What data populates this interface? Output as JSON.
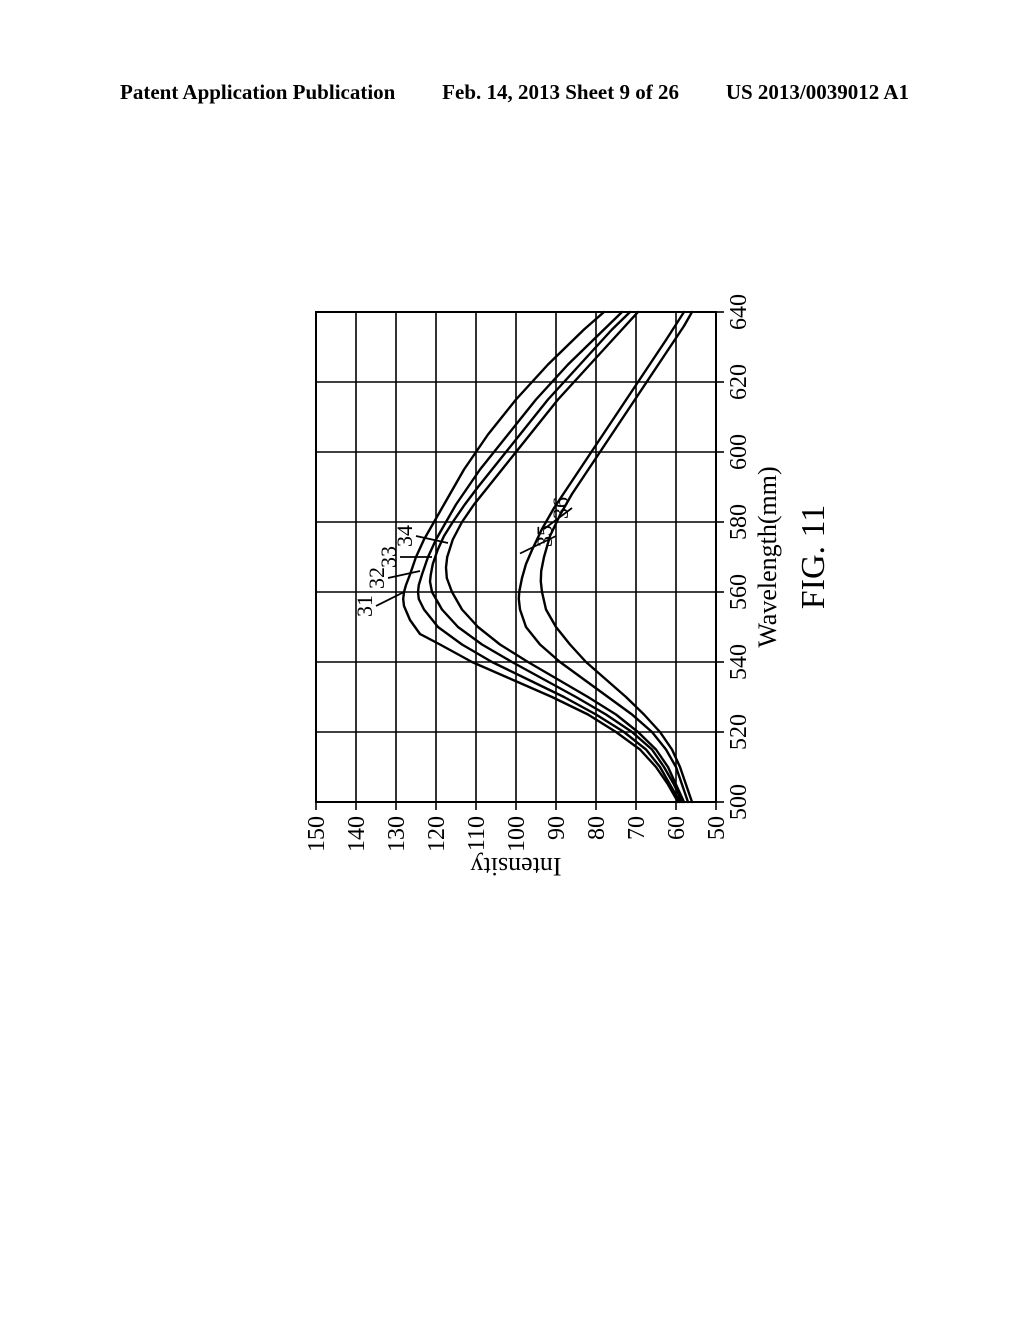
{
  "header": {
    "left": "Patent Application Publication",
    "center": "Feb. 14, 2013  Sheet 9 of 26",
    "right": "US 2013/0039012 A1"
  },
  "figure": {
    "caption": "FIG. 11",
    "xlabel": "Wavelength(mm)",
    "ylabel": "Intensity",
    "xlim": [
      500,
      640
    ],
    "ylim": [
      50,
      150
    ],
    "xticks": [
      500,
      520,
      540,
      560,
      580,
      600,
      620,
      640
    ],
    "yticks": [
      50,
      60,
      70,
      80,
      90,
      100,
      110,
      120,
      130,
      140,
      150
    ],
    "background_color": "#ffffff",
    "grid_color": "#000000",
    "axis_color": "#000000",
    "line_color": "#000000",
    "line_width": 2.4,
    "axis_fontsize": 26,
    "tick_fontsize": 24,
    "caption_fontsize": 34,
    "curve_labels": [
      "31",
      "32",
      "33",
      "34",
      "35",
      "36"
    ],
    "curve_label_positions": [
      {
        "x": 556,
        "y": 135,
        "tx": 560,
        "ty": 128
      },
      {
        "x": 564,
        "y": 132,
        "tx": 566,
        "ty": 124
      },
      {
        "x": 570,
        "y": 129,
        "tx": 570,
        "ty": 121
      },
      {
        "x": 576,
        "y": 125,
        "tx": 574,
        "ty": 117
      },
      {
        "x": 576,
        "y": 90,
        "tx": 571,
        "ty": 99
      },
      {
        "x": 584,
        "y": 86,
        "tx": 578,
        "ty": 93
      }
    ],
    "curves": [
      [
        [
          500,
          59.5
        ],
        [
          505,
          62
        ],
        [
          510,
          65
        ],
        [
          515,
          69
        ],
        [
          520,
          75
        ],
        [
          525,
          82
        ],
        [
          530,
          91
        ],
        [
          535,
          101
        ],
        [
          540,
          111
        ],
        [
          545,
          119
        ],
        [
          548,
          124
        ],
        [
          552,
          126.5
        ],
        [
          556,
          128
        ],
        [
          558,
          128.2
        ],
        [
          560,
          128
        ],
        [
          562,
          127.5
        ],
        [
          565,
          126.5
        ],
        [
          570,
          125
        ],
        [
          575,
          123
        ],
        [
          580,
          120.5
        ],
        [
          585,
          118
        ],
        [
          590,
          115.5
        ],
        [
          595,
          113
        ],
        [
          600,
          110
        ],
        [
          605,
          107
        ],
        [
          610,
          103.5
        ],
        [
          615,
          100
        ],
        [
          620,
          96
        ],
        [
          625,
          92
        ],
        [
          630,
          87.5
        ],
        [
          635,
          83
        ],
        [
          640,
          78
        ]
      ],
      [
        [
          500,
          59
        ],
        [
          505,
          61.5
        ],
        [
          510,
          64
        ],
        [
          515,
          67.5
        ],
        [
          520,
          73
        ],
        [
          525,
          80
        ],
        [
          530,
          88
        ],
        [
          535,
          97
        ],
        [
          540,
          106
        ],
        [
          545,
          113.5
        ],
        [
          550,
          119.5
        ],
        [
          555,
          123
        ],
        [
          558,
          124.3
        ],
        [
          560,
          124.5
        ],
        [
          562,
          124.3
        ],
        [
          565,
          123.5
        ],
        [
          570,
          122
        ],
        [
          575,
          120
        ],
        [
          580,
          117.5
        ],
        [
          585,
          115
        ],
        [
          590,
          112
        ],
        [
          595,
          109
        ],
        [
          600,
          105.5
        ],
        [
          605,
          102
        ],
        [
          610,
          98.5
        ],
        [
          615,
          95
        ],
        [
          620,
          91
        ],
        [
          625,
          87
        ],
        [
          630,
          82.5
        ],
        [
          635,
          78
        ],
        [
          640,
          73.5
        ]
      ],
      [
        [
          500,
          58.5
        ],
        [
          505,
          60.5
        ],
        [
          510,
          63
        ],
        [
          515,
          66
        ],
        [
          520,
          71
        ],
        [
          525,
          77.5
        ],
        [
          530,
          85
        ],
        [
          535,
          93
        ],
        [
          540,
          101
        ],
        [
          545,
          108.5
        ],
        [
          550,
          114.5
        ],
        [
          555,
          118.5
        ],
        [
          560,
          121
        ],
        [
          563,
          121.5
        ],
        [
          565,
          121.3
        ],
        [
          568,
          120.8
        ],
        [
          572,
          119.6
        ],
        [
          576,
          118
        ],
        [
          580,
          115.8
        ],
        [
          585,
          112.8
        ],
        [
          590,
          109.5
        ],
        [
          595,
          106
        ],
        [
          600,
          102.5
        ],
        [
          605,
          99
        ],
        [
          610,
          95.5
        ],
        [
          615,
          92
        ],
        [
          620,
          88
        ],
        [
          625,
          84
        ],
        [
          630,
          80
        ],
        [
          635,
          76
        ],
        [
          640,
          71.5
        ]
      ],
      [
        [
          500,
          58
        ],
        [
          505,
          60
        ],
        [
          510,
          62
        ],
        [
          515,
          65
        ],
        [
          520,
          69.5
        ],
        [
          525,
          75
        ],
        [
          530,
          82
        ],
        [
          535,
          89.5
        ],
        [
          540,
          97
        ],
        [
          545,
          104
        ],
        [
          550,
          109.5
        ],
        [
          555,
          113.5
        ],
        [
          560,
          116
        ],
        [
          564,
          117.3
        ],
        [
          567,
          117.5
        ],
        [
          570,
          117.2
        ],
        [
          575,
          115.8
        ],
        [
          580,
          113.5
        ],
        [
          585,
          110.5
        ],
        [
          590,
          107
        ],
        [
          595,
          103.5
        ],
        [
          600,
          100
        ],
        [
          605,
          96.5
        ],
        [
          610,
          93
        ],
        [
          615,
          89.5
        ],
        [
          620,
          85.5
        ],
        [
          625,
          81.5
        ],
        [
          630,
          77.5
        ],
        [
          635,
          73.5
        ],
        [
          640,
          69.5
        ]
      ],
      [
        [
          500,
          57
        ],
        [
          505,
          58.5
        ],
        [
          510,
          60
        ],
        [
          515,
          62.5
        ],
        [
          520,
          66
        ],
        [
          525,
          71
        ],
        [
          530,
          77
        ],
        [
          535,
          83
        ],
        [
          540,
          89
        ],
        [
          545,
          94
        ],
        [
          550,
          97.5
        ],
        [
          555,
          99
        ],
        [
          558,
          99.3
        ],
        [
          560,
          99.2
        ],
        [
          564,
          98.5
        ],
        [
          568,
          97.5
        ],
        [
          572,
          96
        ],
        [
          578,
          93.5
        ],
        [
          584,
          90.5
        ],
        [
          590,
          87
        ],
        [
          596,
          83.5
        ],
        [
          602,
          80
        ],
        [
          608,
          76.5
        ],
        [
          614,
          73
        ],
        [
          620,
          69.5
        ],
        [
          626,
          66
        ],
        [
          632,
          62.5
        ],
        [
          640,
          58
        ]
      ],
      [
        [
          500,
          56
        ],
        [
          505,
          57.5
        ],
        [
          510,
          59
        ],
        [
          515,
          61
        ],
        [
          520,
          64
        ],
        [
          525,
          68
        ],
        [
          530,
          72.5
        ],
        [
          535,
          77.5
        ],
        [
          540,
          82.5
        ],
        [
          545,
          86.5
        ],
        [
          550,
          90
        ],
        [
          555,
          92.5
        ],
        [
          560,
          93.5
        ],
        [
          563,
          93.8
        ],
        [
          566,
          93.7
        ],
        [
          570,
          93
        ],
        [
          576,
          91.5
        ],
        [
          582,
          89
        ],
        [
          588,
          86
        ],
        [
          594,
          82.5
        ],
        [
          600,
          79
        ],
        [
          606,
          75.5
        ],
        [
          612,
          72
        ],
        [
          618,
          68.5
        ],
        [
          624,
          65
        ],
        [
          630,
          61.5
        ],
        [
          636,
          58
        ],
        [
          640,
          56
        ]
      ]
    ]
  }
}
